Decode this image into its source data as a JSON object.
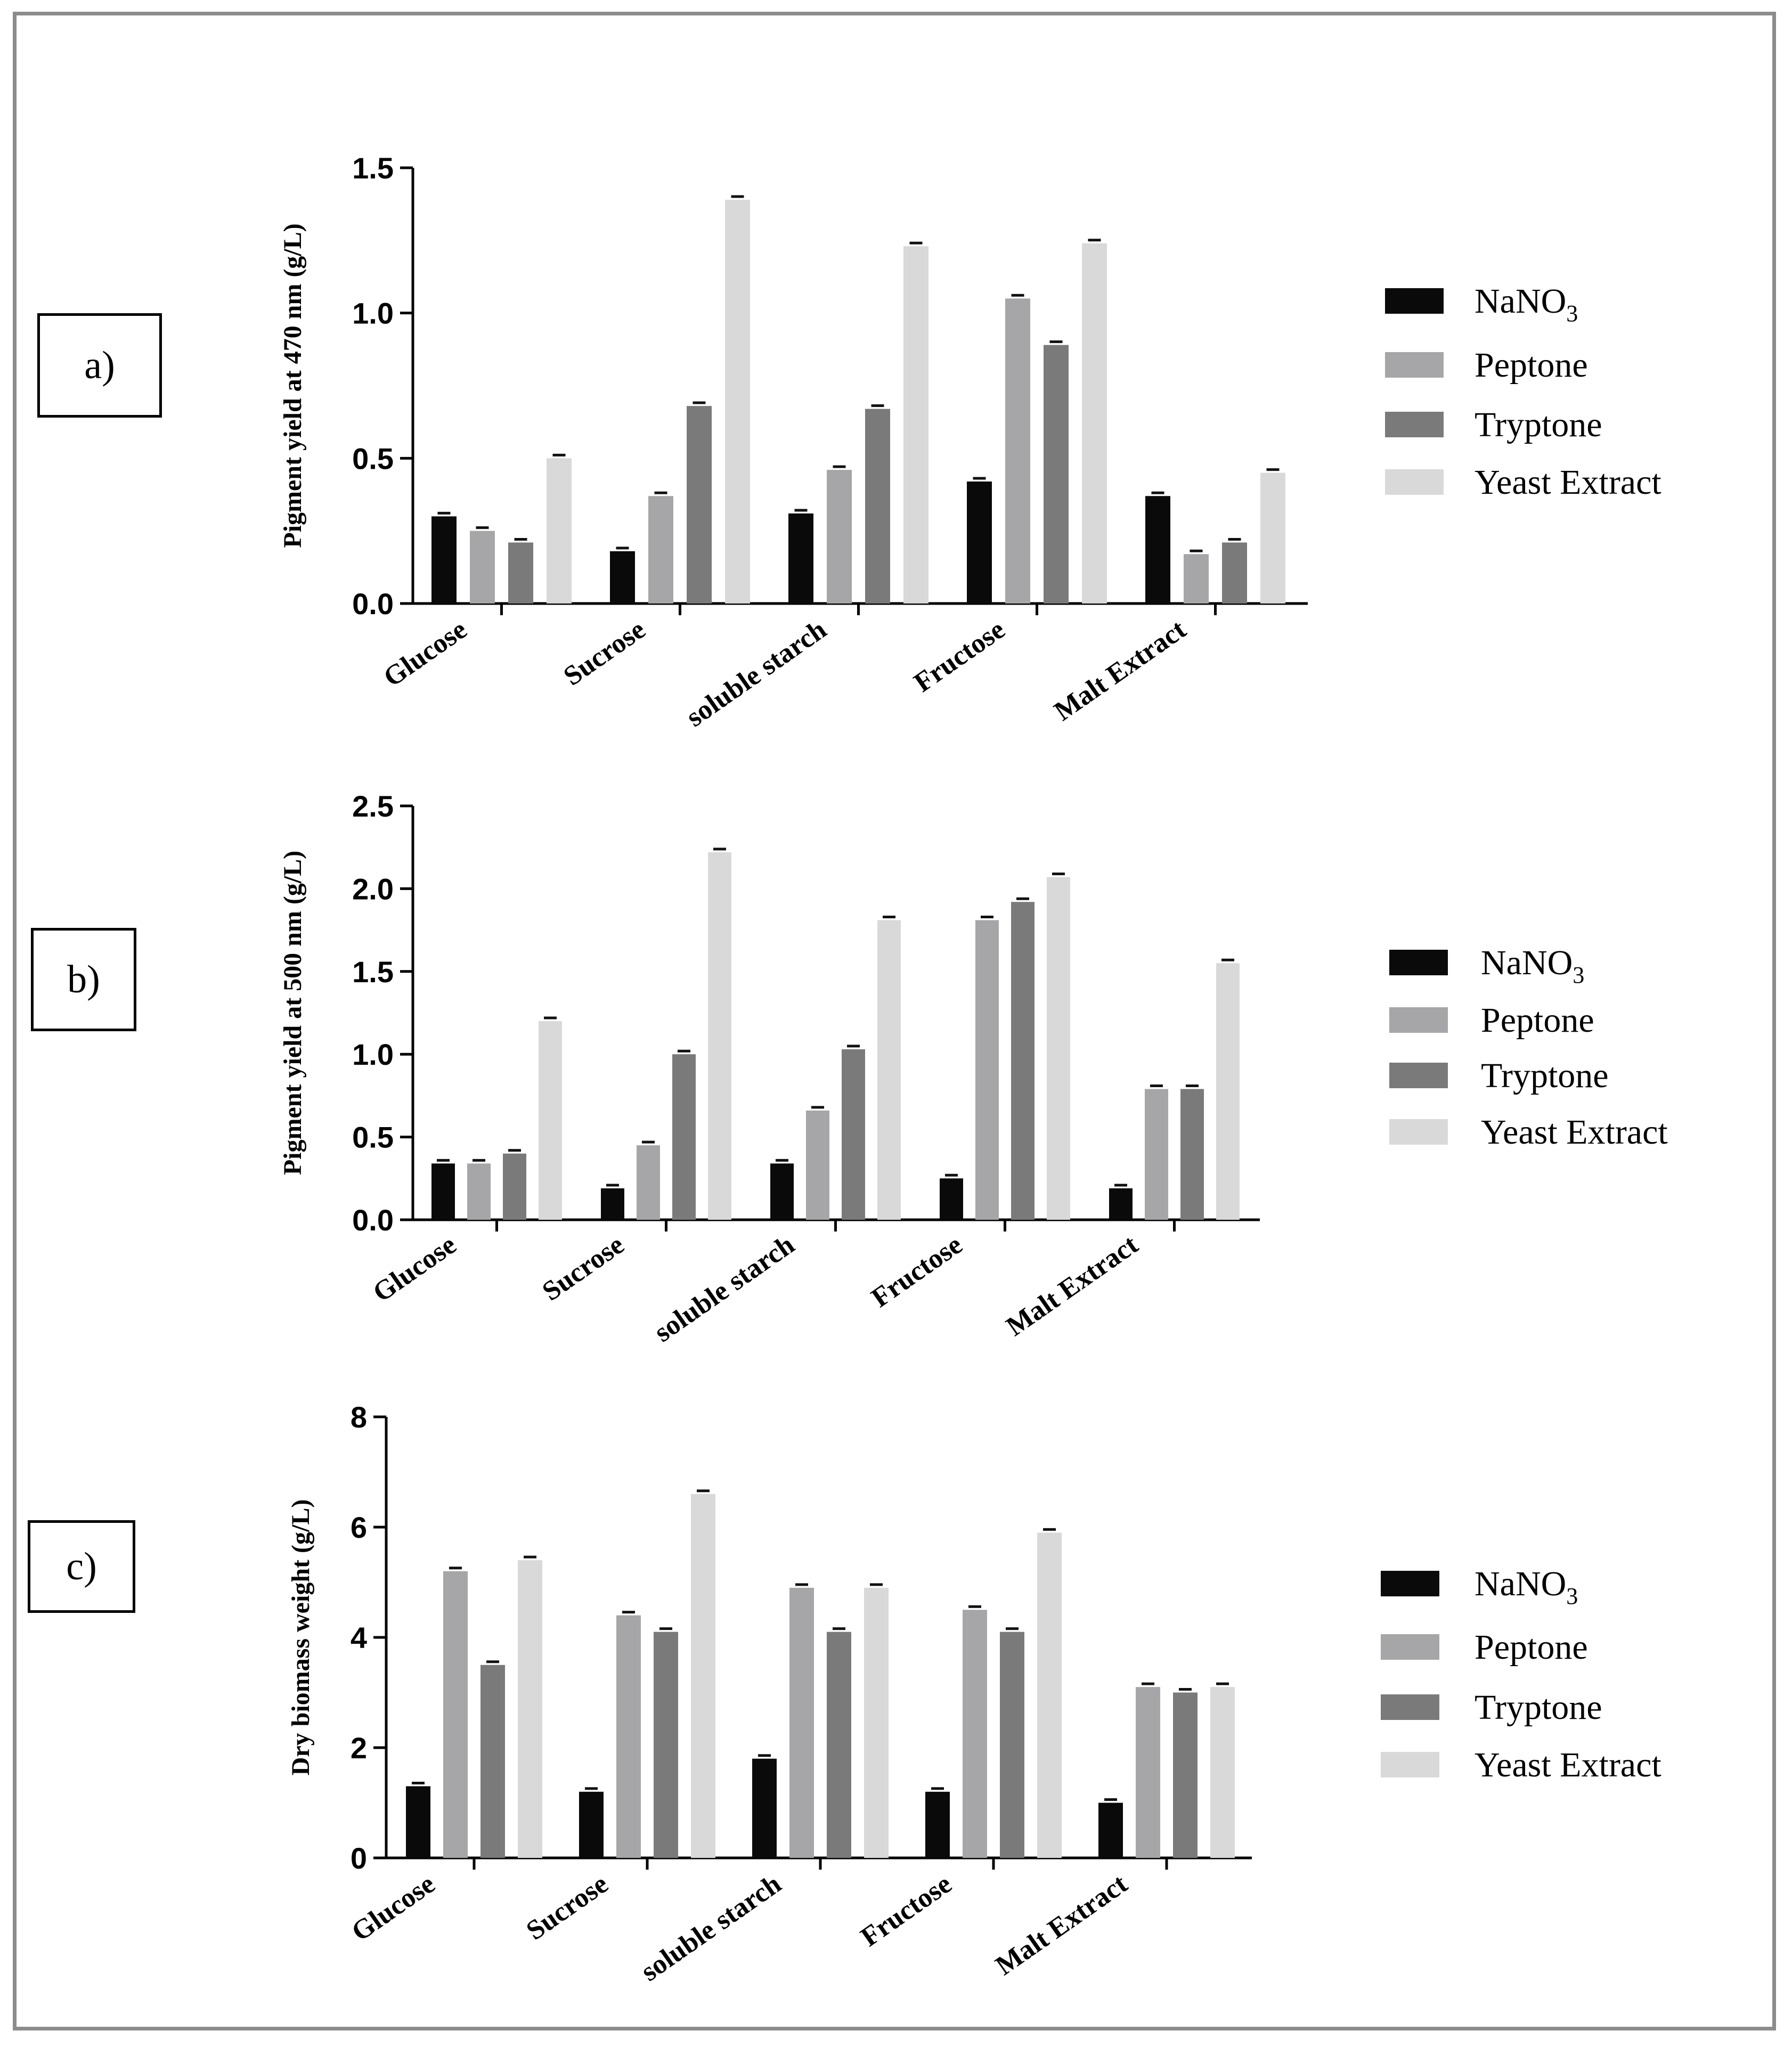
{
  "panel_labels": [
    "a)",
    "b)",
    "c)"
  ],
  "legend": {
    "items": [
      "NaNO",
      "Peptone",
      "Tryptone",
      "Yeast Extract"
    ],
    "nano_subscript": "3",
    "colors": [
      "#0a0a0a",
      "#a6a6a8",
      "#7a7a7a",
      "#d9d9d9"
    ]
  },
  "chart_data": [
    {
      "type": "bar",
      "title": "",
      "xlabel": "",
      "ylabel": "Pigment yield at 470 nm (g/L)",
      "ylim": [
        0,
        1.5
      ],
      "yticks": [
        "0.0",
        "0.5",
        "1.0",
        "1.5"
      ],
      "categories": [
        "Glucose",
        "Sucrose",
        "soluble starch",
        "Fructose",
        "Malt Extract"
      ],
      "series": [
        {
          "name": "NaNO3",
          "values": [
            0.3,
            0.18,
            0.31,
            0.42,
            0.37
          ]
        },
        {
          "name": "Peptone",
          "values": [
            0.25,
            0.37,
            0.46,
            1.05,
            0.17
          ]
        },
        {
          "name": "Tryptone",
          "values": [
            0.21,
            0.68,
            0.67,
            0.89,
            0.21
          ]
        },
        {
          "name": "Yeast Extract",
          "values": [
            0.5,
            1.39,
            1.23,
            1.24,
            0.45
          ]
        }
      ]
    },
    {
      "type": "bar",
      "title": "",
      "xlabel": "",
      "ylabel": "Pigment yield at 500 nm (g/L)",
      "ylim": [
        0,
        2.5
      ],
      "yticks": [
        "0.0",
        "0.5",
        "1.0",
        "1.5",
        "2.0",
        "2.5"
      ],
      "categories": [
        "Glucose",
        "Sucrose",
        "soluble starch",
        "Fructose",
        "Malt Extract"
      ],
      "series": [
        {
          "name": "NaNO3",
          "values": [
            0.34,
            0.19,
            0.34,
            0.25,
            0.19
          ]
        },
        {
          "name": "Peptone",
          "values": [
            0.34,
            0.45,
            0.66,
            1.81,
            0.79
          ]
        },
        {
          "name": "Tryptone",
          "values": [
            0.4,
            1.0,
            1.03,
            1.92,
            0.79
          ]
        },
        {
          "name": "Yeast Extract",
          "values": [
            1.2,
            2.22,
            1.81,
            2.07,
            1.55
          ]
        }
      ]
    },
    {
      "type": "bar",
      "title": "",
      "xlabel": "",
      "ylabel": "Dry biomass weight (g/L)",
      "ylim": [
        0,
        8
      ],
      "yticks": [
        "0",
        "2",
        "4",
        "6",
        "8"
      ],
      "categories": [
        "Glucose",
        "Sucrose",
        "soluble starch",
        "Fructose",
        "Malt Extract"
      ],
      "series": [
        {
          "name": "NaNO3",
          "values": [
            1.3,
            1.2,
            1.8,
            1.2,
            1.0
          ]
        },
        {
          "name": "Peptone",
          "values": [
            5.2,
            4.4,
            4.9,
            4.5,
            3.1
          ]
        },
        {
          "name": "Tryptone",
          "values": [
            3.5,
            4.1,
            4.1,
            4.1,
            3.0
          ]
        },
        {
          "name": "Yeast Extract",
          "values": [
            5.4,
            6.6,
            4.9,
            5.9,
            3.1
          ]
        }
      ]
    }
  ]
}
